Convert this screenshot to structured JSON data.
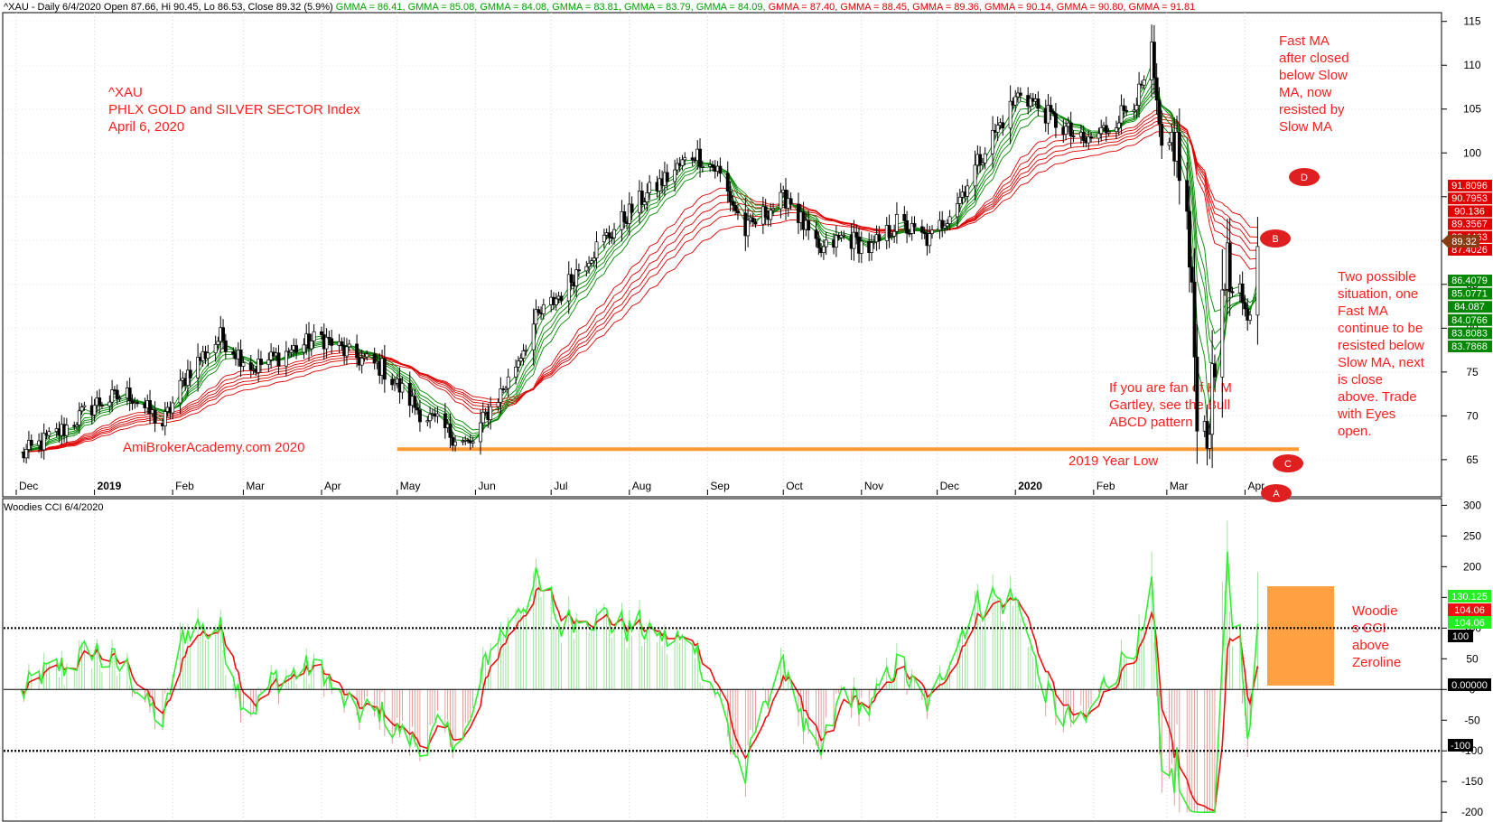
{
  "header": {
    "prefix": "^XAU - Daily 6/4/2020 Open 87.66, Hi 90.45, Lo 86.53, Close 89.32 (5.9%)",
    "gmma": [
      {
        "text": "GMMA = 86.41,",
        "color": "#00a000"
      },
      {
        "text": "GMMA = 85.08,",
        "color": "#00a000"
      },
      {
        "text": "GMMA = 84.08,",
        "color": "#00a000"
      },
      {
        "text": "GMMA = 83.81,",
        "color": "#00a000"
      },
      {
        "text": "GMMA = 83.79,",
        "color": "#00a000"
      },
      {
        "text": "GMMA = 84.09,",
        "color": "#00a000"
      },
      {
        "text": "GMMA = 87.40,",
        "color": "#e00000"
      },
      {
        "text": "GMMA = 88.45,",
        "color": "#e00000"
      },
      {
        "text": "GMMA = 89.36,",
        "color": "#e00000"
      },
      {
        "text": "GMMA = 90.14,",
        "color": "#e00000"
      },
      {
        "text": "GMMA = 90.80,",
        "color": "#e00000"
      },
      {
        "text": "GMMA = 91.81",
        "color": "#e00000"
      }
    ]
  },
  "annotations": {
    "title_lines": [
      "^XAU",
      "PHLX GOLD and SILVER SECTOR Index",
      "April 6, 2020"
    ],
    "watermark": "AmiBrokerAcademy.com   2020",
    "year_low": "2019 Year Low",
    "gartley": [
      "If you are fan of H M",
      "Gartley, see the Bull",
      "ABCD pattern"
    ],
    "fast_ma": [
      "Fast MA",
      "after closed",
      "below Slow",
      "MA, now",
      "resisted by",
      "Slow MA"
    ],
    "two_possible": [
      "Two possible",
      "situation, one",
      "Fast MA",
      "continue to be",
      "resisted below",
      "Slow MA, next",
      "is close",
      "above. Trade",
      "with Eyes",
      "open."
    ],
    "woodies": [
      "Woodie",
      "s CCI",
      "above",
      "Zeroline"
    ],
    "points": [
      "A",
      "B",
      "C",
      "D"
    ]
  },
  "cci_header": "Woodies CCI  6/4/2020",
  "price_labels": {
    "red": [
      "91.8096",
      "90.7953",
      "90.136",
      "89.3567",
      "88.4463",
      "87.4026"
    ],
    "green": [
      "86.4079",
      "85.0771",
      "84.087",
      "84.0766",
      "83.8083",
      "83.7868"
    ],
    "close": "89.32"
  },
  "cci_labels": {
    "green_a": "130.125",
    "red": "104.06",
    "green_b": "104.06",
    "hundred": "100",
    "zero": "0.00000",
    "minus": "-100"
  },
  "colors": {
    "fast": "#008800",
    "slow": "#e00000",
    "orange": "#ff9933",
    "cci_green": "#33ee33",
    "cci_red": "#ee1111",
    "annot": "#ff2020"
  },
  "chart_data": [
    {
      "type": "candlestick",
      "title": "^XAU - Daily",
      "x_ticks": [
        "Dec",
        "2019",
        "Feb",
        "Mar",
        "Apr",
        "May",
        "Jun",
        "Jul",
        "Aug",
        "Sep",
        "Oct",
        "Nov",
        "Dec",
        "2020",
        "Feb",
        "Mar",
        "Apr"
      ],
      "ylim": [
        62,
        116
      ],
      "y_ticks": [
        65,
        70,
        75,
        80,
        85,
        90,
        95,
        100,
        105,
        110,
        115
      ],
      "support_level": 66.2,
      "close_path": [
        {
          "date": "2018-12-03",
          "close": 65.5
        },
        {
          "date": "2018-12-20",
          "close": 68.5
        },
        {
          "date": "2019-01-02",
          "close": 71.5
        },
        {
          "date": "2019-01-15",
          "close": 72.5
        },
        {
          "date": "2019-01-28",
          "close": 69.0
        },
        {
          "date": "2019-02-07",
          "close": 75.0
        },
        {
          "date": "2019-02-20",
          "close": 79.0
        },
        {
          "date": "2019-03-05",
          "close": 75.5
        },
        {
          "date": "2019-03-20",
          "close": 77.5
        },
        {
          "date": "2019-04-01",
          "close": 79.0
        },
        {
          "date": "2019-04-12",
          "close": 77.0
        },
        {
          "date": "2019-04-25",
          "close": 75.5
        },
        {
          "date": "2019-05-10",
          "close": 70.5
        },
        {
          "date": "2019-05-22",
          "close": 68.0
        },
        {
          "date": "2019-05-30",
          "close": 66.5
        },
        {
          "date": "2019-06-05",
          "close": 70.0
        },
        {
          "date": "2019-06-14",
          "close": 74.0
        },
        {
          "date": "2019-06-25",
          "close": 81.0
        },
        {
          "date": "2019-07-05",
          "close": 84.0
        },
        {
          "date": "2019-07-15",
          "close": 88.0
        },
        {
          "date": "2019-07-25",
          "close": 91.0
        },
        {
          "date": "2019-08-05",
          "close": 94.5
        },
        {
          "date": "2019-08-15",
          "close": 97.0
        },
        {
          "date": "2019-08-27",
          "close": 100.0
        },
        {
          "date": "2019-09-05",
          "close": 98.0
        },
        {
          "date": "2019-09-16",
          "close": 91.0
        },
        {
          "date": "2019-09-25",
          "close": 93.5
        },
        {
          "date": "2019-10-03",
          "close": 95.0
        },
        {
          "date": "2019-10-15",
          "close": 88.5
        },
        {
          "date": "2019-10-25",
          "close": 90.5
        },
        {
          "date": "2019-11-05",
          "close": 89.0
        },
        {
          "date": "2019-11-15",
          "close": 92.0
        },
        {
          "date": "2019-11-28",
          "close": 90.0
        },
        {
          "date": "2019-12-10",
          "close": 95.0
        },
        {
          "date": "2019-12-20",
          "close": 100.5
        },
        {
          "date": "2020-01-03",
          "close": 107.0
        },
        {
          "date": "2020-01-15",
          "close": 104.0
        },
        {
          "date": "2020-01-28",
          "close": 101.0
        },
        {
          "date": "2020-02-07",
          "close": 103.0
        },
        {
          "date": "2020-02-20",
          "close": 107.0
        },
        {
          "date": "2020-02-24",
          "close": 111.5
        },
        {
          "date": "2020-02-28",
          "close": 97.0
        },
        {
          "date": "2020-03-04",
          "close": 102.0
        },
        {
          "date": "2020-03-09",
          "close": 92.0
        },
        {
          "date": "2020-03-13",
          "close": 72.0
        },
        {
          "date": "2020-03-16",
          "close": 68.0
        },
        {
          "date": "2020-03-19",
          "close": 72.0
        },
        {
          "date": "2020-03-24",
          "close": 88.0
        },
        {
          "date": "2020-03-27",
          "close": 83.0
        },
        {
          "date": "2020-04-01",
          "close": 80.0
        },
        {
          "date": "2020-04-06",
          "close": 89.32
        }
      ]
    },
    {
      "type": "line",
      "title": "Woodies CCI",
      "ylim": [
        -210,
        305
      ],
      "y_ticks": [
        -200,
        -150,
        -100,
        -50,
        0,
        50,
        100,
        150,
        200,
        250,
        300
      ],
      "reference_lines": [
        100,
        0,
        -100
      ]
    }
  ]
}
